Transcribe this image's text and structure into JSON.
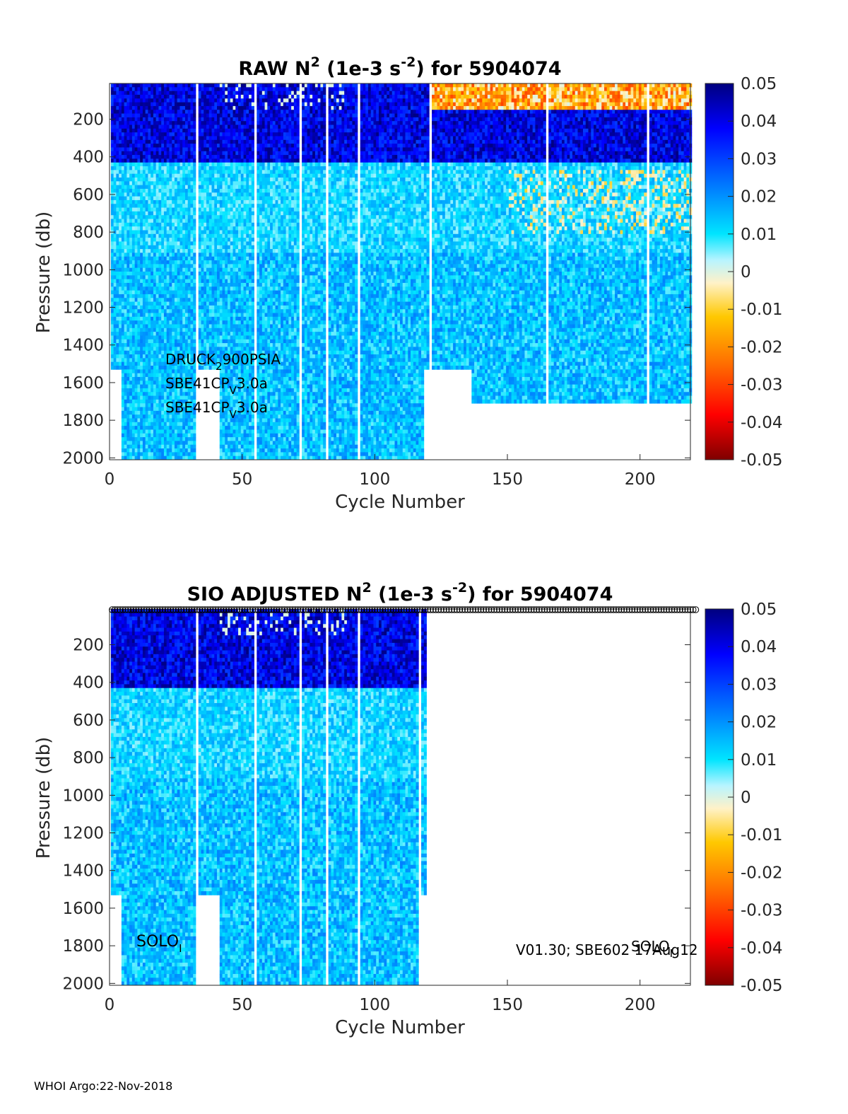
{
  "chart_data": [
    {
      "type": "heatmap",
      "title": {
        "pre": "RAW N",
        "sup1": "2",
        "mid": " (1e-3 s",
        "sup2": "-2",
        "post": ") for 5904074"
      },
      "xlabel": "Cycle Number",
      "ylabel": "Pressure (db)",
      "xlim": [
        0,
        219
      ],
      "ylim": [
        2010,
        10
      ],
      "xticks": [
        0,
        50,
        100,
        150,
        200
      ],
      "yticks": [
        200,
        400,
        600,
        800,
        1000,
        1200,
        1400,
        1600,
        1800,
        2000
      ],
      "colorbar": {
        "range": [
          -0.05,
          0.05
        ],
        "ticks": [
          "0.05",
          "0.04",
          "0.03",
          "0.02",
          "0.01",
          "0",
          "-0.01",
          "-0.02",
          "-0.03",
          "-0.04",
          "-0.05"
        ]
      },
      "annotations": [
        {
          "base": "DRUCK",
          "sub": "2",
          "rest": "900PSIA"
        },
        {
          "base": "SBE41CP",
          "sub": "V",
          "rest": "3.0a"
        },
        {
          "base": "SBE41CP",
          "sub": "V",
          "rest": "3.0a"
        }
      ],
      "last_cycle": 219,
      "missing_cycles": [
        33,
        55,
        72,
        82,
        94,
        121,
        165,
        203
      ],
      "max_pressure_by_cycle_segments": [
        {
          "from": 1,
          "to": 4,
          "max_p": 1520
        },
        {
          "from": 5,
          "to": 32,
          "max_p": 2010
        },
        {
          "from": 34,
          "to": 41,
          "max_p": 1520
        },
        {
          "from": 42,
          "to": 118,
          "max_p": 2010
        },
        {
          "from": 119,
          "to": 136,
          "max_p": 1520
        },
        {
          "from": 137,
          "to": 219,
          "max_p": 1700
        }
      ],
      "surface_features": "strongly negative N2 near surface after cycle 120; positive 0.04-0.05 band at 150-400 db"
    },
    {
      "type": "heatmap",
      "title": {
        "pre": "SIO  ADJUSTED N",
        "sup1": "2",
        "mid": " (1e-3 s",
        "sup2": "-2",
        "post": ") for 5904074"
      },
      "xlabel": "Cycle Number",
      "ylabel": "Pressure (db)",
      "xlim": [
        0,
        219
      ],
      "ylim": [
        2010,
        10
      ],
      "xticks": [
        0,
        50,
        100,
        150,
        200
      ],
      "yticks": [
        200,
        400,
        600,
        800,
        1000,
        1200,
        1400,
        1600,
        1800,
        2000
      ],
      "colorbar": {
        "range": [
          -0.05,
          0.05
        ],
        "ticks": [
          "0.05",
          "0.04",
          "0.03",
          "0.02",
          "0.01",
          "0",
          "-0.01",
          "-0.02",
          "-0.03",
          "-0.04",
          "-0.05"
        ]
      },
      "annotations_left": {
        "base": "SOLO",
        "sub": "I",
        "rest": ""
      },
      "annotations_right": {
        "text1": "V01.30; SBE602 17Aug12",
        "text2": "SOLO",
        "sub": "I"
      },
      "data_last_cycle": 119,
      "marker_cycles": {
        "from": 1,
        "to": 221
      },
      "missing_cycles": [
        33,
        55,
        72,
        82,
        94,
        117
      ],
      "max_pressure_by_cycle_segments": [
        {
          "from": 1,
          "to": 4,
          "max_p": 1520
        },
        {
          "from": 5,
          "to": 32,
          "max_p": 2010
        },
        {
          "from": 34,
          "to": 41,
          "max_p": 1520
        },
        {
          "from": 42,
          "to": 116,
          "max_p": 2010
        },
        {
          "from": 118,
          "to": 119,
          "max_p": 1520
        }
      ]
    }
  ],
  "footer": "WHOI Argo:22-Nov-2018"
}
